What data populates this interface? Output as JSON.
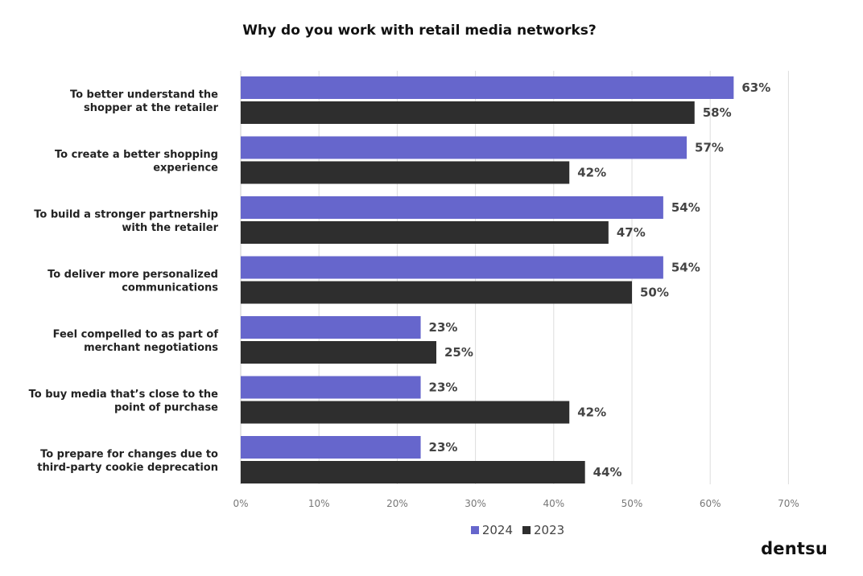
{
  "chart_data": {
    "type": "bar",
    "orientation": "horizontal",
    "title": "Why do you work with retail media networks?",
    "categories": [
      [
        "To better understand the",
        "shopper at the retailer"
      ],
      [
        "To create a better shopping",
        "experience"
      ],
      [
        "To build a stronger partnership",
        "with the retailer"
      ],
      [
        "To deliver more personalized",
        "communications"
      ],
      [
        "Feel compelled to as part of",
        "merchant negotiations"
      ],
      [
        "To buy media that’s close to the",
        "point of purchase"
      ],
      [
        "To prepare for changes due to",
        "third-party cookie deprecation"
      ]
    ],
    "series": [
      {
        "name": "2024",
        "color": "#6666cc",
        "values": [
          63,
          57,
          54,
          54,
          23,
          23,
          23
        ]
      },
      {
        "name": "2023",
        "color": "#2e2e2e",
        "values": [
          58,
          42,
          47,
          50,
          25,
          42,
          44
        ]
      }
    ],
    "value_suffix": "%",
    "xlim": [
      0,
      70
    ],
    "xticks": [
      0,
      10,
      20,
      30,
      40,
      50,
      60,
      70
    ],
    "tick_suffix": "%",
    "grid": true,
    "legend_position": "bottom"
  },
  "brand": "dentsu"
}
